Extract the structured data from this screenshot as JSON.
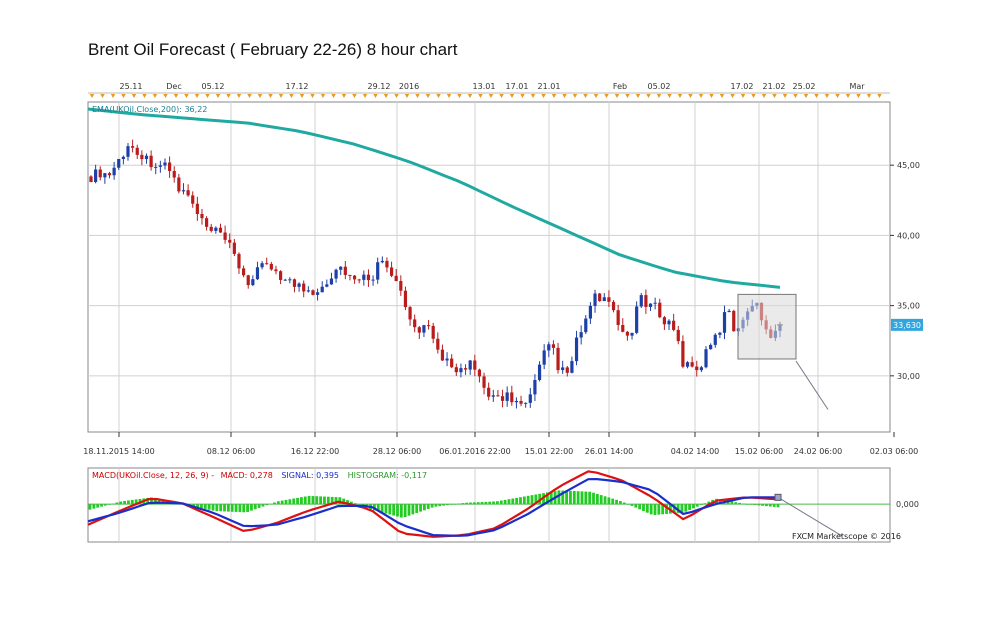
{
  "title": "Brent Oil Forecast ( February 22-26) 8 hour chart",
  "chart_data": [
    {
      "type": "candlestick",
      "indicator": "EMA(UKOil.Close,200): 36,22",
      "ylim": [
        26,
        49.5
      ],
      "yticks": [
        "45,00",
        "40,00",
        "35,00",
        "30,00"
      ],
      "ytick_values": [
        45,
        40,
        35,
        30
      ],
      "current_price": "33,630",
      "current_price_value": 33.63,
      "top_date_labels": [
        "25.11",
        "Dec",
        "05.12",
        "17.12",
        "29.12",
        "2016",
        "13.01",
        "17.01",
        "21.01",
        "Feb",
        "05.02",
        "17.02",
        "21.02",
        "25.02",
        "Mar"
      ],
      "bottom_date_labels": [
        "18.11.2015 14:00",
        "08.12 06:00",
        "16.12 22:00",
        "28.12 06:00",
        "06.01.2016 22:00",
        "15.01 22:00",
        "26.01 14:00",
        "04.02 14:00",
        "15.02 06:00",
        "24.02 06:00",
        "02.03 06:00"
      ],
      "grid": true,
      "close_path": [
        44.2,
        44.5,
        44.3,
        45.2,
        46.2,
        46.3,
        45.5,
        45.2,
        45.0,
        44.6,
        43.2,
        42.8,
        41.5,
        40.5,
        40.2,
        39.8,
        38.8,
        37.5,
        36.5,
        37.5,
        38.0,
        37.5,
        36.8,
        36.5,
        36.2,
        36.0,
        36.4,
        37.0,
        37.8,
        37.4,
        36.5,
        37.0,
        37.2,
        38.6,
        37.5,
        36.0,
        34.0,
        33.0,
        33.5,
        32.0,
        31.2,
        30.8,
        30.3,
        30.8,
        29.6,
        28.5,
        28.5,
        28.6,
        28.3,
        27.6,
        28.8,
        31.0,
        32.5,
        30.5,
        29.9,
        32.5,
        34.0,
        35.5,
        35.6,
        34.5,
        33.2,
        32.7,
        35.5,
        35.0,
        34.8,
        34.0,
        33.4,
        31.0,
        30.6,
        30.7,
        32.0,
        33.0,
        34.8,
        33.0,
        34.5,
        35.4,
        34.0,
        33.0,
        33.6
      ],
      "ema_path": [
        49.0,
        48.6,
        48.3,
        48.0,
        47.4,
        46.5,
        45.3,
        43.8,
        42.0,
        40.3,
        38.6,
        37.4,
        36.7,
        36.3
      ],
      "forecast": {
        "start": 33.6,
        "end": 27.6
      },
      "forecast_box": {
        "from": 31.2,
        "to": 35.8
      }
    },
    {
      "type": "macd",
      "label": "MACD(UKOil.Close, 12, 26, 9) -",
      "macd_label": "MACD: 0,278",
      "signal_label": "SIGNAL: 0,395",
      "histogram_label": "HISTOGRAM: -0,117",
      "ytick": "0,000",
      "ylim": [
        -2.2,
        2.1
      ],
      "macd_path": [
        -1.2,
        -0.4,
        0.35,
        0.05,
        -0.75,
        -1.6,
        -1.1,
        -0.4,
        0.15,
        -0.3,
        -1.7,
        -1.9,
        -1.8,
        -1.4,
        -0.3,
        1.0,
        1.95,
        1.4,
        0.4,
        -0.9,
        0.2,
        0.4,
        0.28
      ],
      "signal_path": [
        -1.0,
        -0.5,
        0.1,
        0.05,
        -0.5,
        -1.3,
        -1.2,
        -0.7,
        -0.1,
        -0.1,
        -1.2,
        -1.8,
        -1.85,
        -1.5,
        -0.6,
        0.5,
        1.5,
        1.3,
        0.8,
        -0.6,
        0.0,
        0.4,
        0.395
      ],
      "forecast": {
        "start": 0.395,
        "end": -1.85
      }
    }
  ],
  "watermark": "FXCM Marketscope © 2016"
}
